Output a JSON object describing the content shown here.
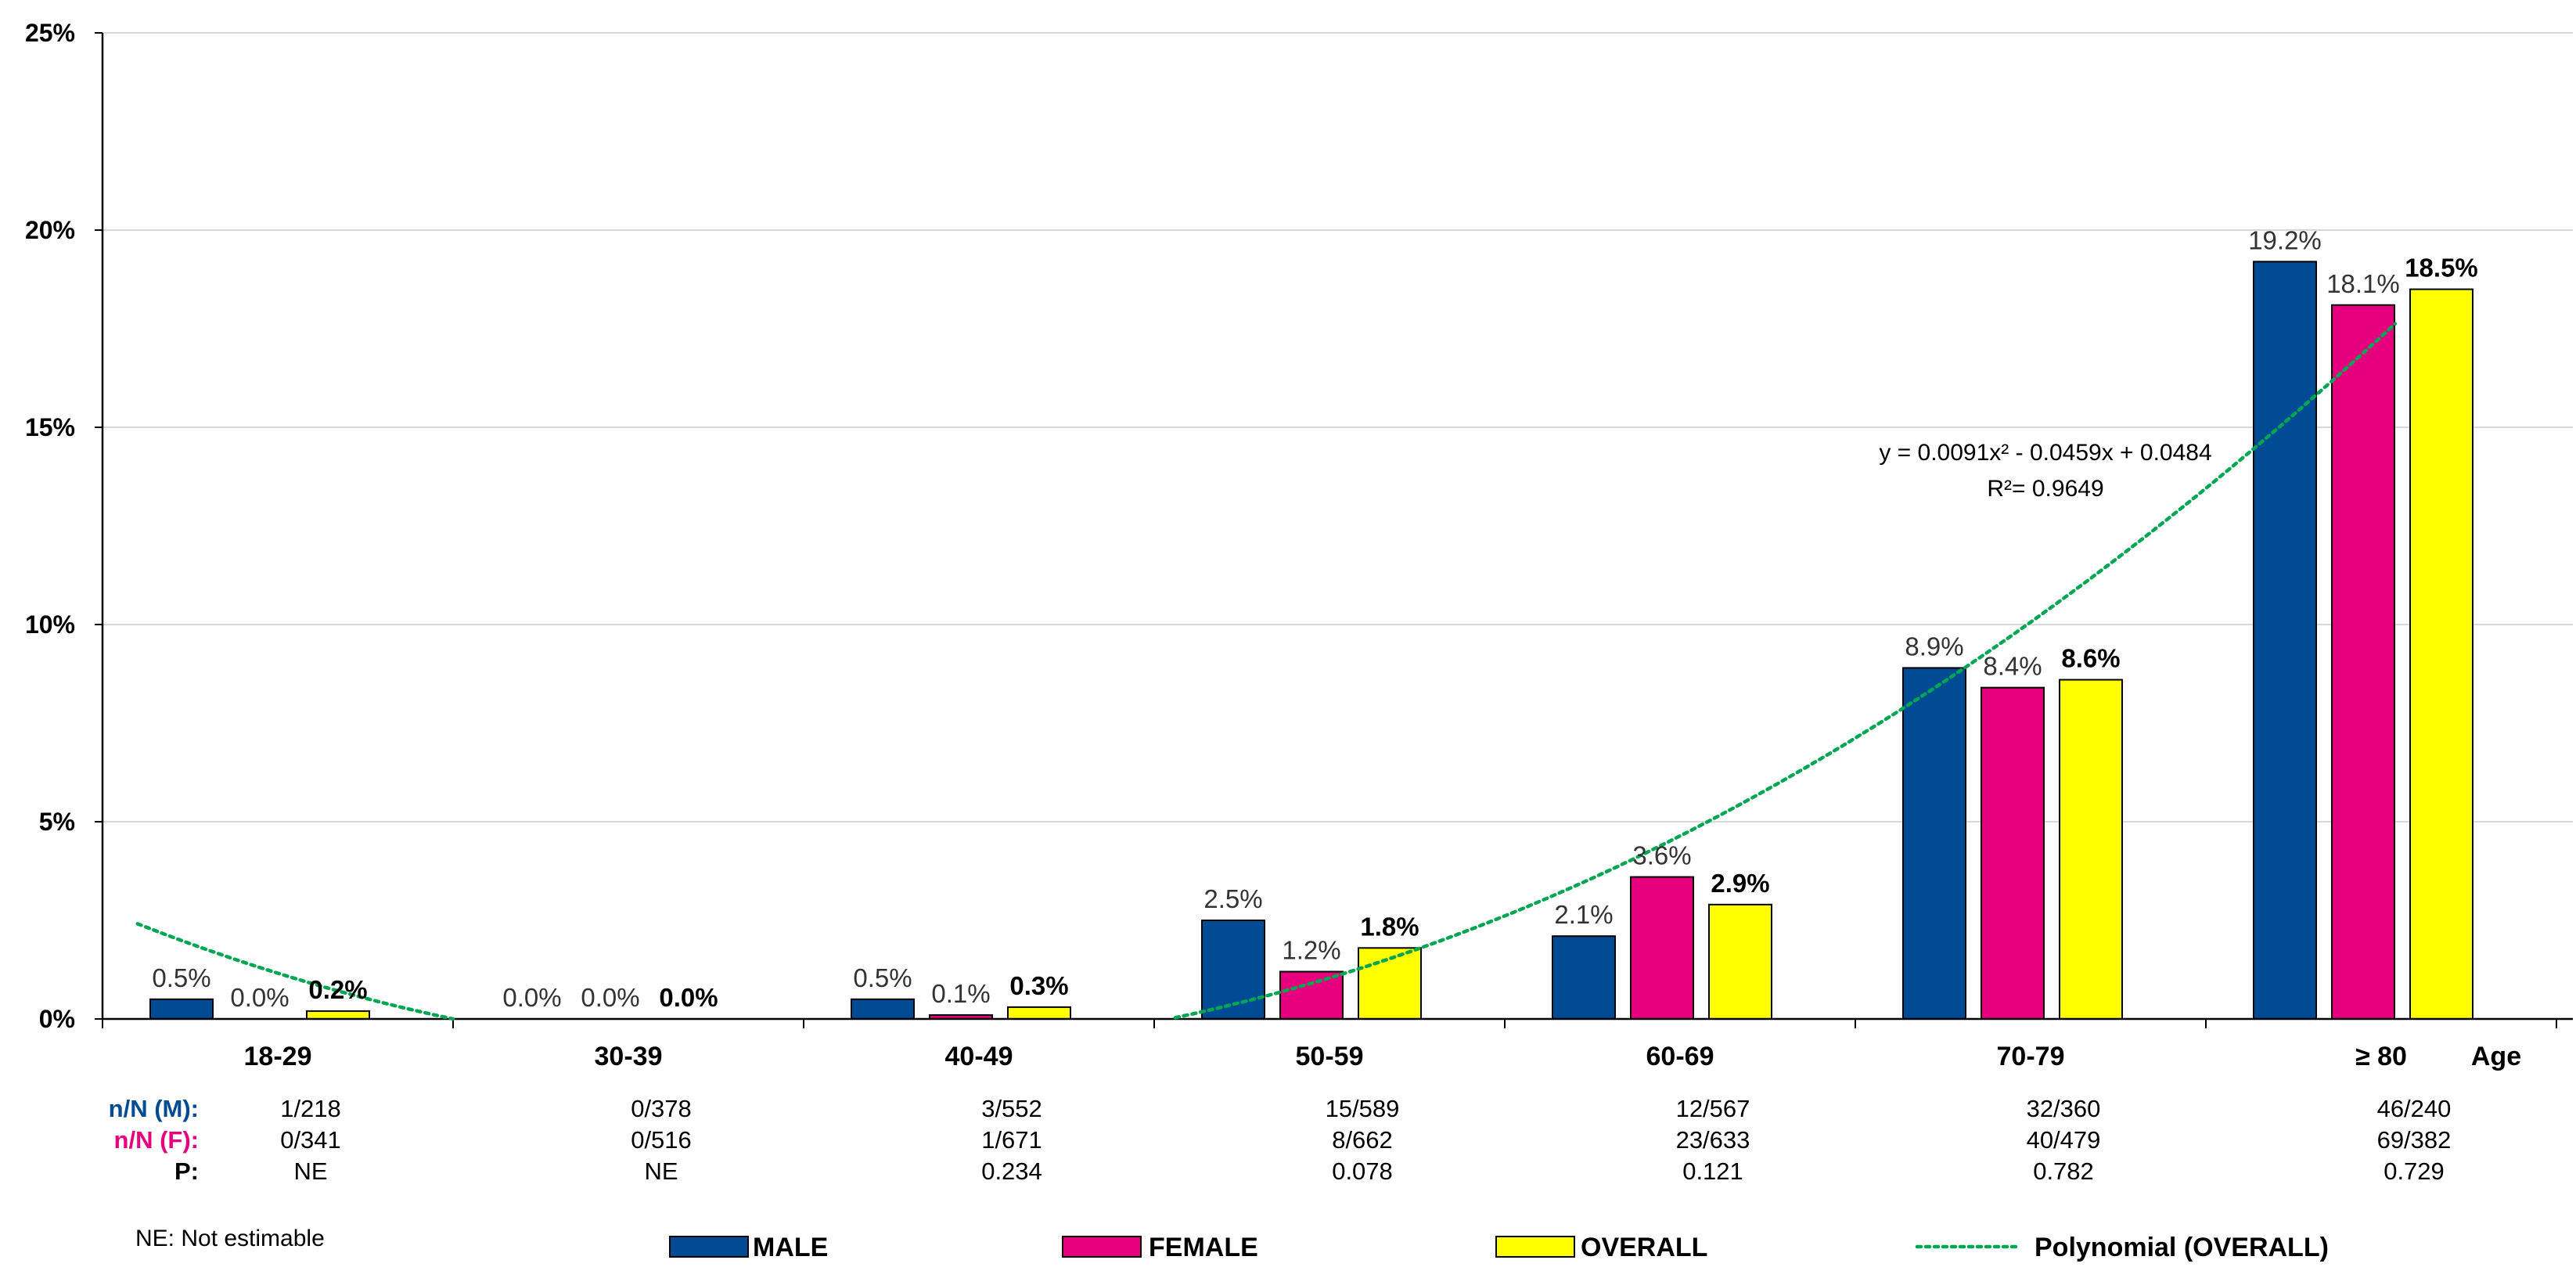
{
  "chart_data": {
    "type": "bar",
    "categories": [
      "18-29",
      "30-39",
      "40-49",
      "50-59",
      "60-69",
      "70-79",
      "≥ 80"
    ],
    "xlabel": "Age",
    "ylabel": "",
    "ylim": [
      0,
      25
    ],
    "yticks": [
      "0%",
      "5%",
      "10%",
      "15%",
      "20%",
      "25%"
    ],
    "ytick_values": [
      0,
      5,
      10,
      15,
      20,
      25
    ],
    "grid": true,
    "series": [
      {
        "name": "MALE",
        "color": "#004b93",
        "values": [
          0.5,
          0.0,
          0.5,
          2.5,
          2.1,
          8.9,
          19.2
        ],
        "labels": [
          "0.5%",
          "0.0%",
          "0.5%",
          "2.5%",
          "2.1%",
          "8.9%",
          "19.2%"
        ]
      },
      {
        "name": "FEMALE",
        "color": "#e6007e",
        "values": [
          0.0,
          0.0,
          0.1,
          1.2,
          3.6,
          8.4,
          18.1
        ],
        "labels": [
          "0.0%",
          "0.0%",
          "0.1%",
          "1.2%",
          "3.6%",
          "8.4%",
          "18.1%"
        ]
      },
      {
        "name": "OVERALL",
        "color": "#ffff00",
        "values": [
          0.2,
          0.0,
          0.3,
          1.8,
          2.9,
          8.6,
          18.5
        ],
        "labels": [
          "0.2%",
          "0.0%",
          "0.3%",
          "1.8%",
          "2.9%",
          "8.6%",
          "18.5%"
        ]
      }
    ],
    "trendline": {
      "name": "Polynomial (OVERALL)",
      "color": "#00a651",
      "coefficients": [
        0.0091,
        -0.0459,
        0.0484
      ],
      "equation": "y = 0.0091x² - 0.0459x + 0.0484",
      "r_squared": "R²= 0.9649"
    },
    "table": {
      "rows": [
        {
          "label": "n/N (M):",
          "color": "#004b93",
          "values": [
            "1/218",
            "0/378",
            "3/552",
            "15/589",
            "12/567",
            "32/360",
            "46/240"
          ]
        },
        {
          "label": "n/N (F):",
          "color": "#e6007e",
          "values": [
            "0/341",
            "0/516",
            "1/671",
            "8/662",
            "23/633",
            "40/479",
            "69/382"
          ]
        },
        {
          "label": "P:",
          "color": "#000000",
          "values": [
            "NE",
            "NE",
            "0.234",
            "0.078",
            "0.121",
            "0.782",
            "0.729"
          ]
        }
      ]
    },
    "note": "NE: Not estimable",
    "legend": [
      {
        "label": "MALE",
        "color": "#004b93",
        "kind": "box"
      },
      {
        "label": "FEMALE",
        "color": "#e6007e",
        "kind": "box"
      },
      {
        "label": "OVERALL",
        "color": "#ffff00",
        "kind": "box"
      },
      {
        "label": "Polynomial (OVERALL)",
        "color": "#00a651",
        "kind": "dotted-line"
      }
    ],
    "legend_position": "bottom"
  }
}
